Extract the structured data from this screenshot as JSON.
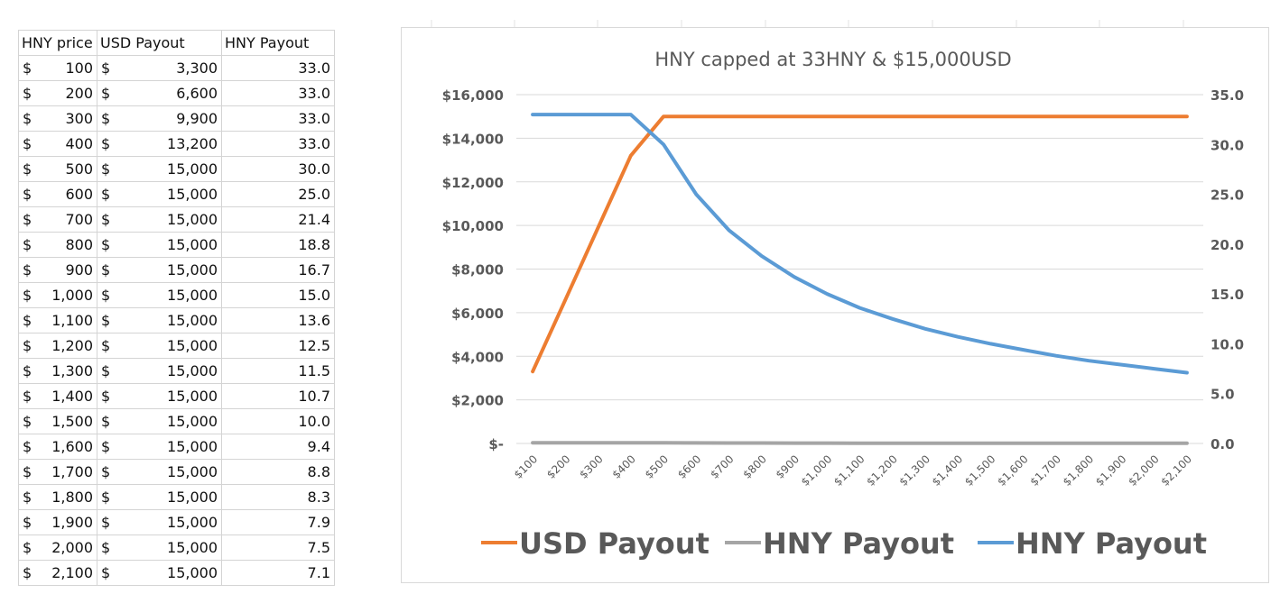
{
  "table": {
    "headers": [
      "HNY price",
      "USD Payout",
      "HNY Payout"
    ],
    "currency_symbol": "$",
    "rows": [
      {
        "price": "100",
        "usd": "3,300",
        "hny": "33.0"
      },
      {
        "price": "200",
        "usd": "6,600",
        "hny": "33.0"
      },
      {
        "price": "300",
        "usd": "9,900",
        "hny": "33.0"
      },
      {
        "price": "400",
        "usd": "13,200",
        "hny": "33.0"
      },
      {
        "price": "500",
        "usd": "15,000",
        "hny": "30.0"
      },
      {
        "price": "600",
        "usd": "15,000",
        "hny": "25.0"
      },
      {
        "price": "700",
        "usd": "15,000",
        "hny": "21.4"
      },
      {
        "price": "800",
        "usd": "15,000",
        "hny": "18.8"
      },
      {
        "price": "900",
        "usd": "15,000",
        "hny": "16.7"
      },
      {
        "price": "1,000",
        "usd": "15,000",
        "hny": "15.0"
      },
      {
        "price": "1,100",
        "usd": "15,000",
        "hny": "13.6"
      },
      {
        "price": "1,200",
        "usd": "15,000",
        "hny": "12.5"
      },
      {
        "price": "1,300",
        "usd": "15,000",
        "hny": "11.5"
      },
      {
        "price": "1,400",
        "usd": "15,000",
        "hny": "10.7"
      },
      {
        "price": "1,500",
        "usd": "15,000",
        "hny": "10.0"
      },
      {
        "price": "1,600",
        "usd": "15,000",
        "hny": "9.4"
      },
      {
        "price": "1,700",
        "usd": "15,000",
        "hny": "8.8"
      },
      {
        "price": "1,800",
        "usd": "15,000",
        "hny": "8.3"
      },
      {
        "price": "1,900",
        "usd": "15,000",
        "hny": "7.9"
      },
      {
        "price": "2,000",
        "usd": "15,000",
        "hny": "7.5"
      },
      {
        "price": "2,100",
        "usd": "15,000",
        "hny": "7.1"
      }
    ]
  },
  "chart_data": {
    "type": "line",
    "title": "HNY capped at 33HNY & $15,000USD",
    "categories": [
      "$100",
      "$200",
      "$300",
      "$400",
      "$500",
      "$600",
      "$700",
      "$800",
      "$900",
      "$1,000",
      "$1,100",
      "$1,200",
      "$1,300",
      "$1,400",
      "$1,500",
      "$1,600",
      "$1,700",
      "$1,800",
      "$1,900",
      "$2,000",
      "$2,100"
    ],
    "series": [
      {
        "name": "USD Payout",
        "axis": "left",
        "color": "#ED7D31",
        "values": [
          3300,
          6600,
          9900,
          13200,
          15000,
          15000,
          15000,
          15000,
          15000,
          15000,
          15000,
          15000,
          15000,
          15000,
          15000,
          15000,
          15000,
          15000,
          15000,
          15000,
          15000
        ]
      },
      {
        "name": "HNY Payout",
        "axis": "left",
        "color": "#A5A5A5",
        "values": [
          33,
          33,
          33,
          33,
          30,
          25,
          21.4,
          18.8,
          16.7,
          15,
          13.6,
          12.5,
          11.5,
          10.7,
          10,
          9.4,
          8.8,
          8.3,
          7.9,
          7.5,
          7.1
        ]
      },
      {
        "name": "HNY Payout",
        "axis": "right",
        "color": "#5B9BD5",
        "values": [
          33,
          33,
          33,
          33,
          30,
          25,
          21.4,
          18.8,
          16.7,
          15,
          13.6,
          12.5,
          11.5,
          10.7,
          10,
          9.4,
          8.8,
          8.3,
          7.9,
          7.5,
          7.1
        ]
      }
    ],
    "y_left": {
      "min": 0,
      "max": 16000,
      "ticks": [
        "$-",
        "$2,000",
        "$4,000",
        "$6,000",
        "$8,000",
        "$10,000",
        "$12,000",
        "$14,000",
        "$16,000"
      ]
    },
    "y_right": {
      "min": 0,
      "max": 35,
      "ticks": [
        "0.0",
        "5.0",
        "10.0",
        "15.0",
        "20.0",
        "25.0",
        "30.0",
        "35.0"
      ]
    },
    "grid": true,
    "legend": "bottom"
  }
}
